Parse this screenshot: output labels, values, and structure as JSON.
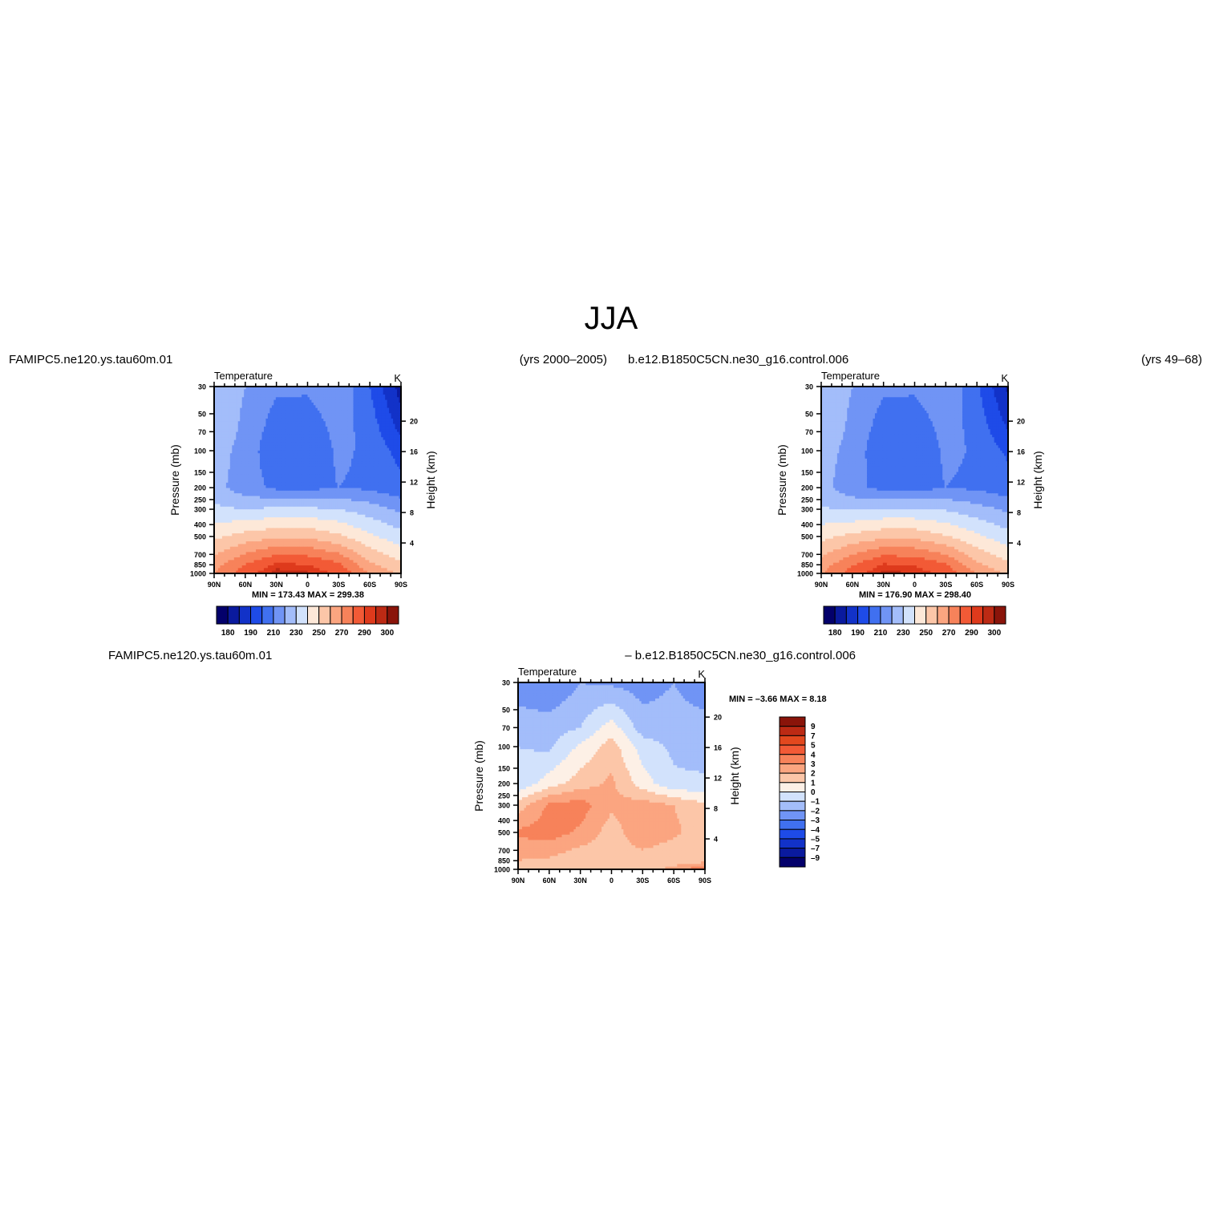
{
  "main_title": "JJA",
  "panels": [
    {
      "header_left": "FAMIPC5.ne120.ys.tau60m.01",
      "header_right": "(yrs 2000–2005)",
      "plot_title": "Temperature",
      "units": "K",
      "ylabel": "Pressure (mb)",
      "ylabel_right": "Height (km)",
      "stats": "MIN =  173.43   MAX =  299.38"
    },
    {
      "header_left": "b.e12.B1850C5CN.ne30_g16.control.006",
      "header_right": "(yrs 49–68)",
      "plot_title": "Temperature",
      "units": "K",
      "ylabel": "Pressure (mb)",
      "ylabel_right": "Height (km)",
      "stats": "MIN =  176.90   MAX =  298.40"
    },
    {
      "header_left": "FAMIPC5.ne120.ys.tau60m.01",
      "header_right": "– b.e12.B1850C5CN.ne30_g16.control.006",
      "plot_title": "Temperature",
      "units": "K",
      "ylabel": "Pressure (mb)",
      "ylabel_right": "Height (km)",
      "stats": "MIN =   –3.66   MAX =    8.18"
    }
  ],
  "colors": {
    "temperature_scale": [
      "#03006b",
      "#0a1a9e",
      "#1232c8",
      "#1e4be8",
      "#4070f0",
      "#7094f5",
      "#a3bdfa",
      "#d2e2fc",
      "#fde8d8",
      "#fcc6a8",
      "#fba580",
      "#f7825a",
      "#f25a36",
      "#de3a1c",
      "#bc2a14",
      "#8a140a"
    ],
    "difference_scale": [
      "#03006b",
      "#0a1a9e",
      "#1232c8",
      "#1e4be8",
      "#4070f0",
      "#7094f5",
      "#a3bdfa",
      "#d2e2fc",
      "#fdf0e6",
      "#fcc6a8",
      "#fba580",
      "#f7825a",
      "#f25a36",
      "#e2481e",
      "#bc2a14",
      "#8a140a"
    ]
  },
  "chart_data": [
    {
      "type": "heatmap",
      "title": "Temperature",
      "units": "K",
      "xlabel": "",
      "ylabel": "Pressure (mb)",
      "ylabel_right": "Height (km)",
      "x_ticks": [
        "90N",
        "60N",
        "30N",
        "0",
        "30S",
        "60S",
        "90S"
      ],
      "y_ticks": [
        30,
        50,
        70,
        100,
        150,
        200,
        250,
        300,
        400,
        500,
        700,
        850,
        1000
      ],
      "y_right_ticks": [
        4,
        8,
        12,
        16,
        20
      ],
      "ylim": [
        30,
        1000
      ],
      "colorbar_levels": [
        180,
        190,
        210,
        230,
        250,
        270,
        290,
        300
      ],
      "colorbar_tick_labels": [
        "180",
        "190",
        "210",
        "230",
        "250",
        "270",
        "290",
        "300"
      ],
      "min": 173.43,
      "max": 299.38,
      "x_lat": [
        90,
        60,
        30,
        0,
        -30,
        -60,
        -90
      ],
      "pressure_levels": [
        30,
        70,
        100,
        200,
        300,
        500,
        850,
        1000
      ],
      "values": [
        [
          226,
          220,
          212,
          212,
          218,
          200,
          175
        ],
        [
          226,
          218,
          204,
          202,
          214,
          206,
          188
        ],
        [
          225,
          216,
          202,
          200,
          212,
          208,
          196
        ],
        [
          224,
          214,
          208,
          207,
          210,
          208,
          203
        ],
        [
          232,
          230,
          232,
          232,
          230,
          225,
          218
        ],
        [
          248,
          254,
          258,
          258,
          252,
          242,
          234
        ],
        [
          266,
          280,
          292,
          290,
          282,
          262,
          252
        ],
        [
          270,
          286,
          298,
          296,
          288,
          270,
          258
        ]
      ]
    },
    {
      "type": "heatmap",
      "title": "Temperature",
      "units": "K",
      "xlabel": "",
      "ylabel": "Pressure (mb)",
      "ylabel_right": "Height (km)",
      "x_ticks": [
        "90N",
        "60N",
        "30N",
        "0",
        "30S",
        "60S",
        "90S"
      ],
      "y_ticks": [
        30,
        50,
        70,
        100,
        150,
        200,
        250,
        300,
        400,
        500,
        700,
        850,
        1000
      ],
      "y_right_ticks": [
        4,
        8,
        12,
        16,
        20
      ],
      "ylim": [
        30,
        1000
      ],
      "colorbar_levels": [
        180,
        190,
        210,
        230,
        250,
        270,
        290,
        300
      ],
      "colorbar_tick_labels": [
        "180",
        "190",
        "210",
        "230",
        "250",
        "270",
        "290",
        "300"
      ],
      "min": 176.9,
      "max": 298.4,
      "x_lat": [
        90,
        60,
        30,
        0,
        -30,
        -60,
        -90
      ],
      "pressure_levels": [
        30,
        70,
        100,
        200,
        300,
        500,
        850,
        1000
      ],
      "values": [
        [
          226,
          220,
          212,
          212,
          218,
          202,
          178
        ],
        [
          226,
          218,
          204,
          202,
          214,
          207,
          190
        ],
        [
          225,
          216,
          202,
          200,
          212,
          209,
          198
        ],
        [
          224,
          213,
          207,
          206,
          210,
          208,
          204
        ],
        [
          231,
          229,
          231,
          231,
          229,
          224,
          218
        ],
        [
          247,
          253,
          257,
          257,
          251,
          242,
          234
        ],
        [
          265,
          279,
          291,
          289,
          281,
          262,
          252
        ],
        [
          269,
          285,
          297,
          295,
          287,
          270,
          258
        ]
      ]
    },
    {
      "type": "heatmap",
      "title": "Temperature",
      "units": "K",
      "xlabel": "",
      "ylabel": "Pressure (mb)",
      "ylabel_right": "Height (km)",
      "x_ticks": [
        "90N",
        "60N",
        "30N",
        "0",
        "30S",
        "60S",
        "90S"
      ],
      "y_ticks": [
        30,
        50,
        70,
        100,
        150,
        200,
        250,
        300,
        400,
        500,
        700,
        850,
        1000
      ],
      "y_right_ticks": [
        4,
        8,
        12,
        16,
        20
      ],
      "ylim": [
        30,
        1000
      ],
      "colorbar_levels": [
        9,
        7,
        5,
        4,
        3,
        2,
        1,
        0,
        -1,
        -2,
        -3,
        -4,
        -5,
        -7,
        -9
      ],
      "colorbar_tick_labels": [
        "9",
        "7",
        "5",
        "4",
        "3",
        "2",
        "1",
        "0",
        "–1",
        "–2",
        "–3",
        "–4",
        "–5",
        "–7",
        "–9"
      ],
      "min": -3.66,
      "max": 8.18,
      "x_lat": [
        90,
        60,
        30,
        0,
        -30,
        -60,
        -90
      ],
      "pressure_levels": [
        30,
        70,
        100,
        200,
        300,
        500,
        850,
        1000
      ],
      "values": [
        [
          -2.5,
          -3,
          -2,
          -2.2,
          -2.5,
          -2,
          -2.8
        ],
        [
          -1.5,
          -1.5,
          -1,
          0.5,
          -1.5,
          -1.5,
          -1.5
        ],
        [
          -1,
          -1.2,
          0.2,
          1.5,
          -0.5,
          -1.2,
          -1.5
        ],
        [
          -0.8,
          0.5,
          1.5,
          2.2,
          0.5,
          -0.8,
          -0.8
        ],
        [
          1.5,
          3.2,
          3.5,
          2.2,
          2.5,
          2,
          1.2
        ],
        [
          3.2,
          3.5,
          2.8,
          1.5,
          2.8,
          2.2,
          1.5
        ],
        [
          2,
          1.8,
          1.2,
          1.4,
          1.5,
          1.2,
          1.5
        ],
        [
          1.2,
          1.2,
          1.2,
          1.2,
          1.2,
          2.5,
          4
        ]
      ]
    }
  ]
}
